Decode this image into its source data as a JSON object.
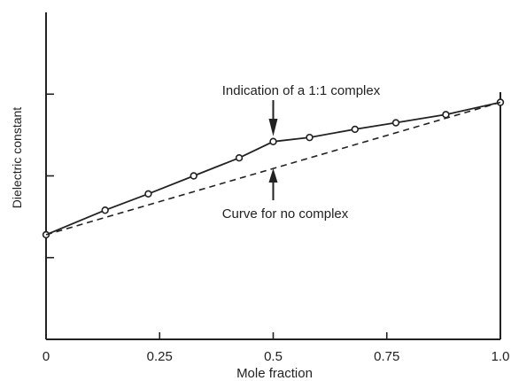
{
  "chart_data": {
    "type": "line",
    "xlabel": "Mole fraction",
    "ylabel": "Dielectric constant",
    "xlim": [
      0,
      1.0
    ],
    "x_ticks": [
      "0",
      "0.25",
      "0.5",
      "0.75",
      "1.0"
    ],
    "x_tick_values": [
      0,
      0.25,
      0.5,
      0.75,
      1.0
    ],
    "ylim": [
      0,
      4
    ],
    "y_tick_values": [
      1,
      2,
      3
    ],
    "grid": false,
    "series": [
      {
        "style": "solid-with-markers",
        "x": [
          0,
          0.13,
          0.225,
          0.325,
          0.425,
          0.5,
          0.58,
          0.68,
          0.77,
          0.88,
          1.0
        ],
        "y": [
          1.28,
          1.58,
          1.78,
          2.0,
          2.22,
          2.42,
          2.47,
          2.57,
          2.65,
          2.75,
          2.9
        ]
      },
      {
        "style": "dashed",
        "x": [
          0,
          1.0
        ],
        "y": [
          1.28,
          2.9
        ]
      }
    ],
    "annotations": [
      {
        "text": "Indication of a 1:1 complex",
        "x": 0.5,
        "y": 2.42,
        "arrow": "down"
      },
      {
        "text": "Curve for no complex",
        "x": 0.5,
        "y": 2.05,
        "arrow": "up"
      }
    ]
  }
}
